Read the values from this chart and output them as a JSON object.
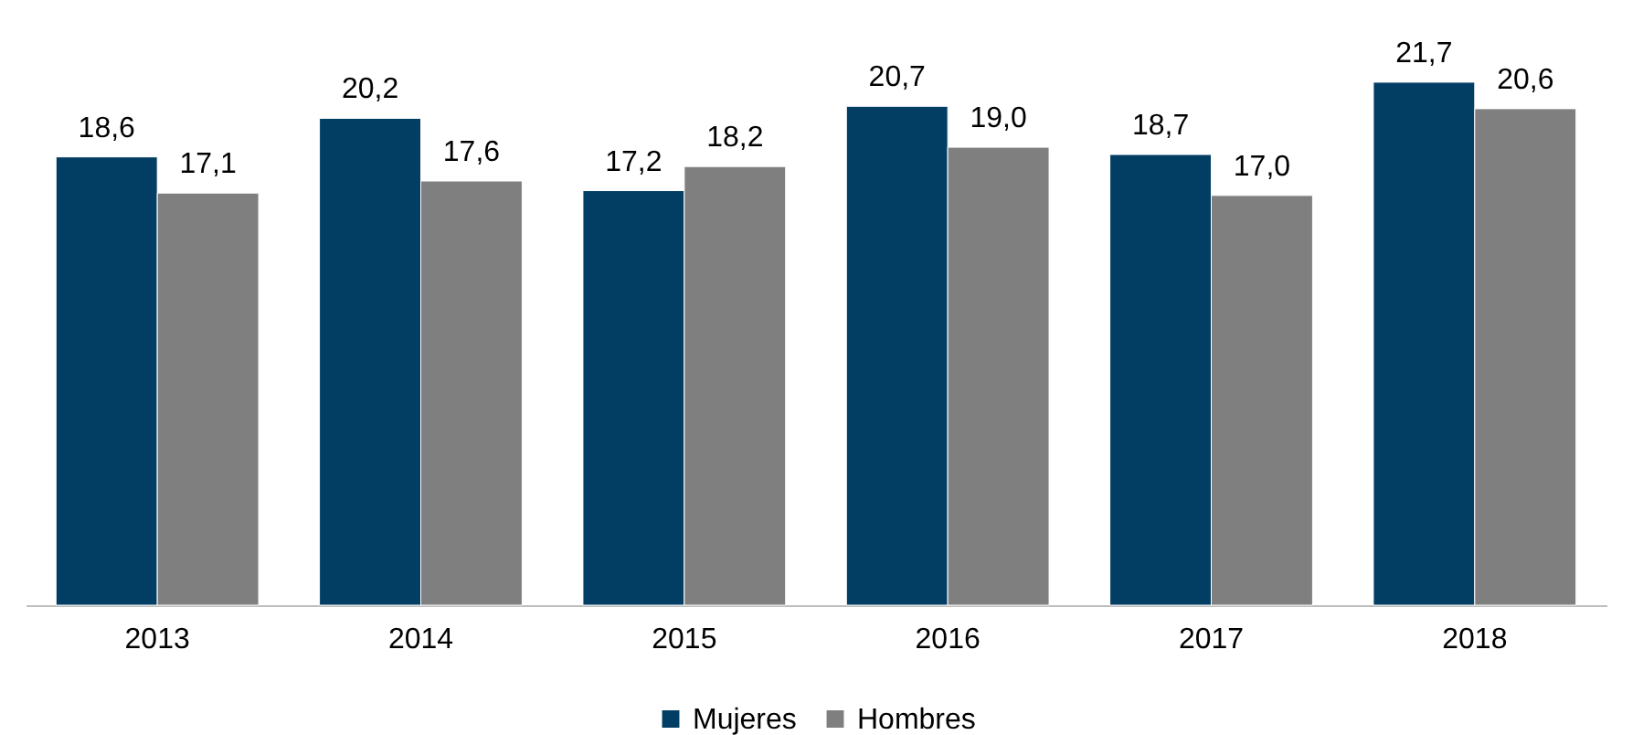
{
  "chart_data": {
    "type": "bar",
    "categories": [
      "2013",
      "2014",
      "2015",
      "2016",
      "2017",
      "2018"
    ],
    "series": [
      {
        "name": "Mujeres",
        "color": "#023d64",
        "values": [
          18.6,
          20.2,
          17.2,
          20.7,
          18.7,
          21.7
        ],
        "value_labels": [
          "18,6",
          "20,2",
          "17,2",
          "20,7",
          "18,7",
          "21,7"
        ]
      },
      {
        "name": "Hombres",
        "color": "#7f7f7f",
        "values": [
          17.1,
          17.6,
          18.2,
          19.0,
          17.0,
          20.6
        ],
        "value_labels": [
          "17,1",
          "17,6",
          "18,2",
          "19,0",
          "17,0",
          "20,6"
        ]
      }
    ],
    "legend": "bottom",
    "grid": false
  }
}
